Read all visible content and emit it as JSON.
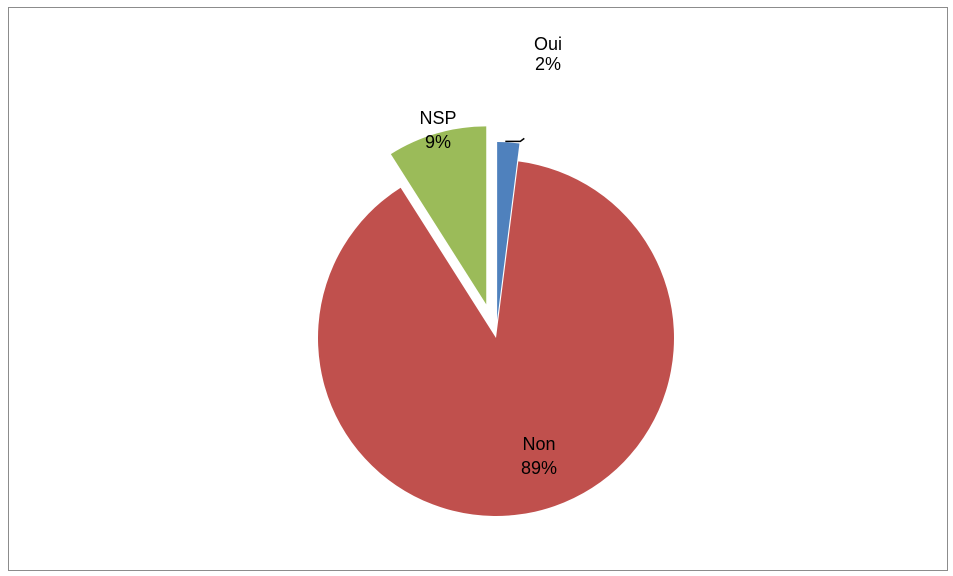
{
  "chart_data": {
    "type": "pie",
    "exploded": true,
    "categories": [
      "Oui",
      "Non",
      "NSP"
    ],
    "values": [
      2,
      89,
      9
    ],
    "data_labels": [
      "2%",
      "89%",
      "9%"
    ],
    "colors": [
      "#4f81bd",
      "#c0504d",
      "#9bbb59"
    ],
    "title": "",
    "legend": "none"
  }
}
